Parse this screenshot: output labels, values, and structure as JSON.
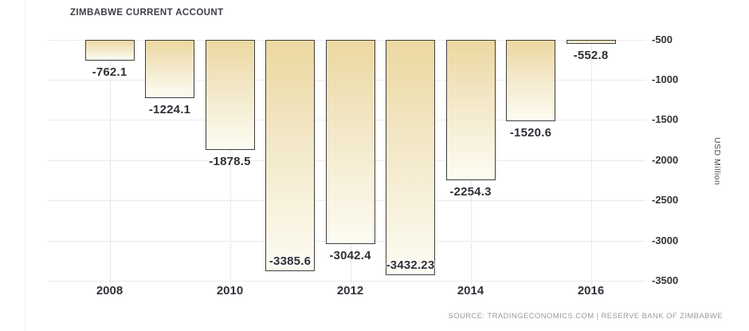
{
  "panel": {
    "title": "ZIMBABWE CURRENT ACCOUNT",
    "source_attribution": "SOURCE: TRADINGECONOMICS.COM | RESERVE BANK OF ZIMBABWE"
  },
  "chart_data": {
    "type": "bar",
    "title": "ZIMBABWE CURRENT ACCOUNT",
    "xlabel": "",
    "ylabel": "USD Million",
    "categories": [
      "2008",
      "2009",
      "2010",
      "2011",
      "2012",
      "2013",
      "2014",
      "2015",
      "2016"
    ],
    "values": [
      -762.1,
      -1224.1,
      -1878.5,
      -3385.6,
      -3042.4,
      -3432.23,
      -2254.3,
      -1520.6,
      -552.8
    ],
    "bar_labels": [
      "-762.1",
      "-1224.1",
      "-1878.5",
      "-3385.6",
      "-3042.4",
      "-3432.23",
      "-2254.3",
      "-1520.6",
      "-552.8"
    ],
    "x_ticks": [
      {
        "label": "2008",
        "index": 0
      },
      {
        "label": "2010",
        "index": 2
      },
      {
        "label": "2012",
        "index": 4
      },
      {
        "label": "2014",
        "index": 6
      },
      {
        "label": "2016",
        "index": 8
      }
    ],
    "y_ticks": [
      {
        "label": "-500",
        "value": -500
      },
      {
        "label": "-1000",
        "value": -1000
      },
      {
        "label": "-1500",
        "value": -1500
      },
      {
        "label": "-2000",
        "value": -2000
      },
      {
        "label": "-2500",
        "value": -2500
      },
      {
        "label": "-3000",
        "value": -3000
      },
      {
        "label": "-3500",
        "value": -3500
      }
    ],
    "ylim": [
      -3500,
      -500
    ],
    "grid": "dotted",
    "legend_position": "none",
    "colors": {
      "bar_gradient_top": "#ecd8a0",
      "bar_gradient_bottom": "#fdfcf3",
      "bar_border": "#3e3e3e",
      "gridline": "#d6d6d6",
      "data_label": "#303038",
      "axis_label": "#33333b",
      "title": "#3e3e4a",
      "source_text": "#9a9a9a",
      "panel_border": "#f0f0f0",
      "background": "#ffffff"
    }
  }
}
